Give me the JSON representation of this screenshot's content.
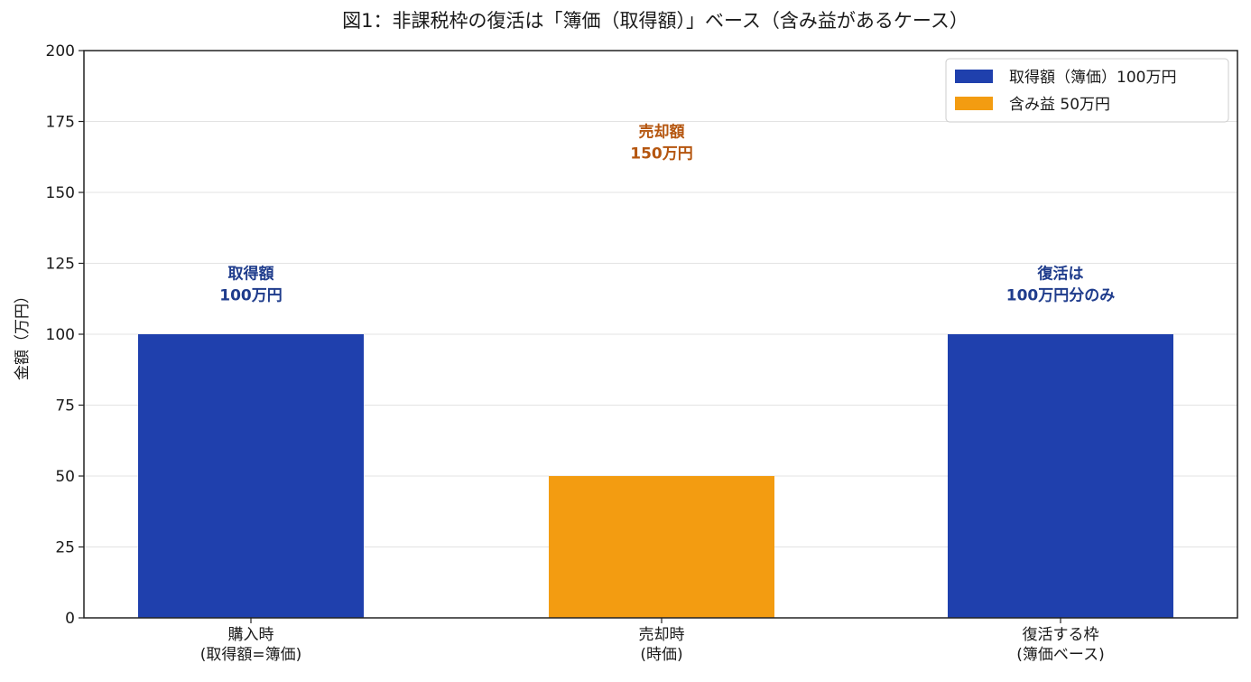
{
  "chart_data": {
    "type": "bar",
    "title": "図1：非課税枠の復活は「簿価（取得額）」ベース（含み益があるケース）",
    "ylabel": "金額（万円）",
    "xlabel": "",
    "ylim": [
      0,
      200
    ],
    "yticks": [
      0,
      25,
      50,
      75,
      100,
      125,
      150,
      175,
      200
    ],
    "grid": "horizontal",
    "legend_position": "top-right",
    "categories": [
      [
        "購入時",
        "(取得額=簿価)"
      ],
      [
        "売却時",
        "(時価)"
      ],
      [
        "復活する枠",
        "(簿価ベース)"
      ]
    ],
    "values": [
      100,
      50,
      100
    ],
    "bar_colors": [
      "#1f40ad",
      "#f39c11",
      "#1f40ad"
    ],
    "legend": [
      {
        "label": "取得額（簿価）100万円",
        "color": "#1f40ad"
      },
      {
        "label": "含み益 50万円",
        "color": "#f39c11"
      }
    ],
    "annotations": [
      {
        "category_index": 0,
        "y": 112,
        "lines": [
          "取得額",
          "100万円"
        ],
        "color": "#1f3c8c"
      },
      {
        "category_index": 1,
        "y": 162,
        "lines": [
          "売却額",
          "150万円"
        ],
        "color": "#b5560f"
      },
      {
        "category_index": 2,
        "y": 112,
        "lines": [
          "復活は",
          "100万円分のみ"
        ],
        "color": "#1f3c8c"
      }
    ]
  }
}
